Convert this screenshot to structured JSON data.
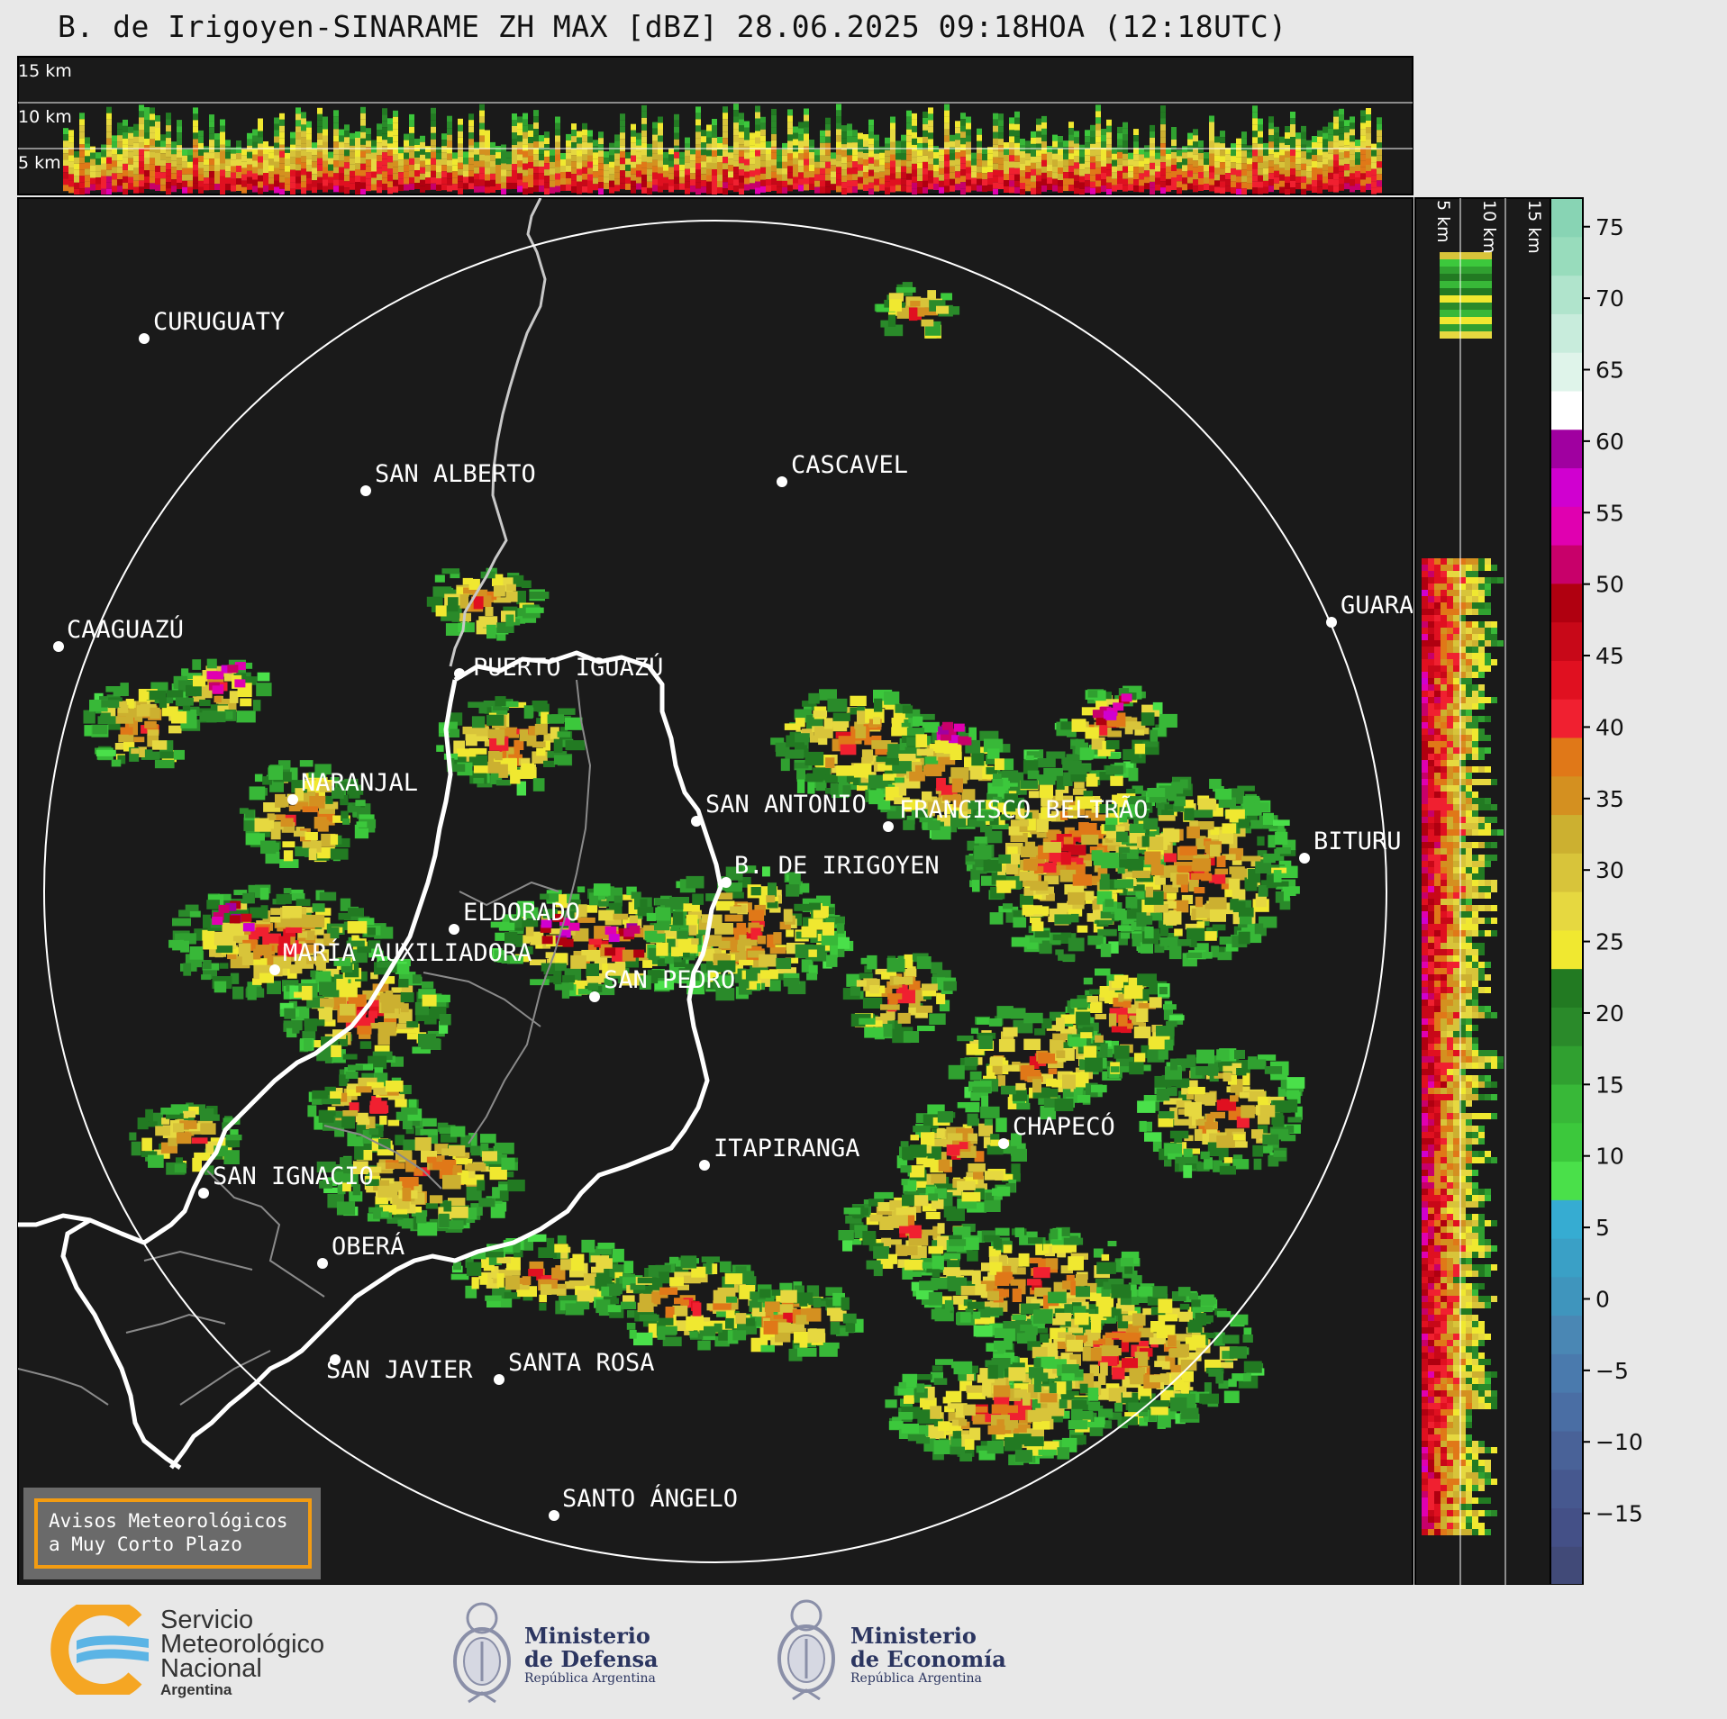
{
  "title": "B. de Irigoyen-SINARAME ZH MAX [dBZ] 28.06.2025 09:18HOA (12:18UTC)",
  "height_labels": {
    "top": [
      "15 km",
      "10 km",
      "5 km"
    ],
    "side": [
      "5 km",
      "10 km",
      "15 km"
    ]
  },
  "cities": [
    {
      "name": "CURUGUATY"
    },
    {
      "name": "SAN ALBERTO"
    },
    {
      "name": "CASCAVEL"
    },
    {
      "name": "CAAGUAZÚ"
    },
    {
      "name": "GUARA"
    },
    {
      "name": "PUERTO IGUAZÚ"
    },
    {
      "name": "NARANJAL"
    },
    {
      "name": "SAN ANTONIO"
    },
    {
      "name": "FRANCISCO BELTRÃO"
    },
    {
      "name": "BITURU"
    },
    {
      "name": "B. DE IRIGOYEN"
    },
    {
      "name": "ELDORADO"
    },
    {
      "name": "MARÍA AUXILIADORA"
    },
    {
      "name": "SAN PEDRO"
    },
    {
      "name": "CHAPECÓ"
    },
    {
      "name": "ITAPIRANGA"
    },
    {
      "name": "SAN IGNACIO"
    },
    {
      "name": "OBERÁ"
    },
    {
      "name": "SAN JAVIER"
    },
    {
      "name": "SANTA ROSA"
    },
    {
      "name": "SANTO ÁNGELO"
    }
  ],
  "colorbar": {
    "ticks": [
      "75",
      "70",
      "65",
      "60",
      "55",
      "50",
      "45",
      "40",
      "35",
      "30",
      "25",
      "20",
      "15",
      "10",
      "5",
      "0",
      "−5",
      "−10",
      "−15"
    ],
    "colors": [
      "#414a78",
      "#445087",
      "#46588f",
      "#496298",
      "#4a6ea4",
      "#4a7aad",
      "#4a87b4",
      "#3f95bd",
      "#3aa0c6",
      "#36acd2",
      "#4ae04a",
      "#3cc83c",
      "#38b838",
      "#30a030",
      "#2a8a2a",
      "#227a22",
      "#f0e830",
      "#e6d840",
      "#d8c43a",
      "#ccb030",
      "#d49020",
      "#e07818",
      "#f02030",
      "#e01020",
      "#c80818",
      "#b00010",
      "#c8006a",
      "#e000b0",
      "#d000d0",
      "#a000a0",
      "#ffffff",
      "#dff4ea",
      "#c8ecdc",
      "#b0e4cc",
      "#98dcbc",
      "#88d4b4"
    ]
  },
  "aviso": {
    "line1": "Avisos Meteorológicos",
    "line2": "a Muy Corto Plazo"
  },
  "footer": {
    "smn": {
      "line1": "Servicio",
      "line2": "Meteorológico",
      "line3": "Nacional",
      "line4": "Argentina"
    },
    "defensa": {
      "line1": "Ministerio",
      "line2": "de Defensa",
      "sub": "República Argentina"
    },
    "economia": {
      "line1": "Ministerio",
      "line2": "de Economía",
      "sub": "República Argentina"
    }
  }
}
